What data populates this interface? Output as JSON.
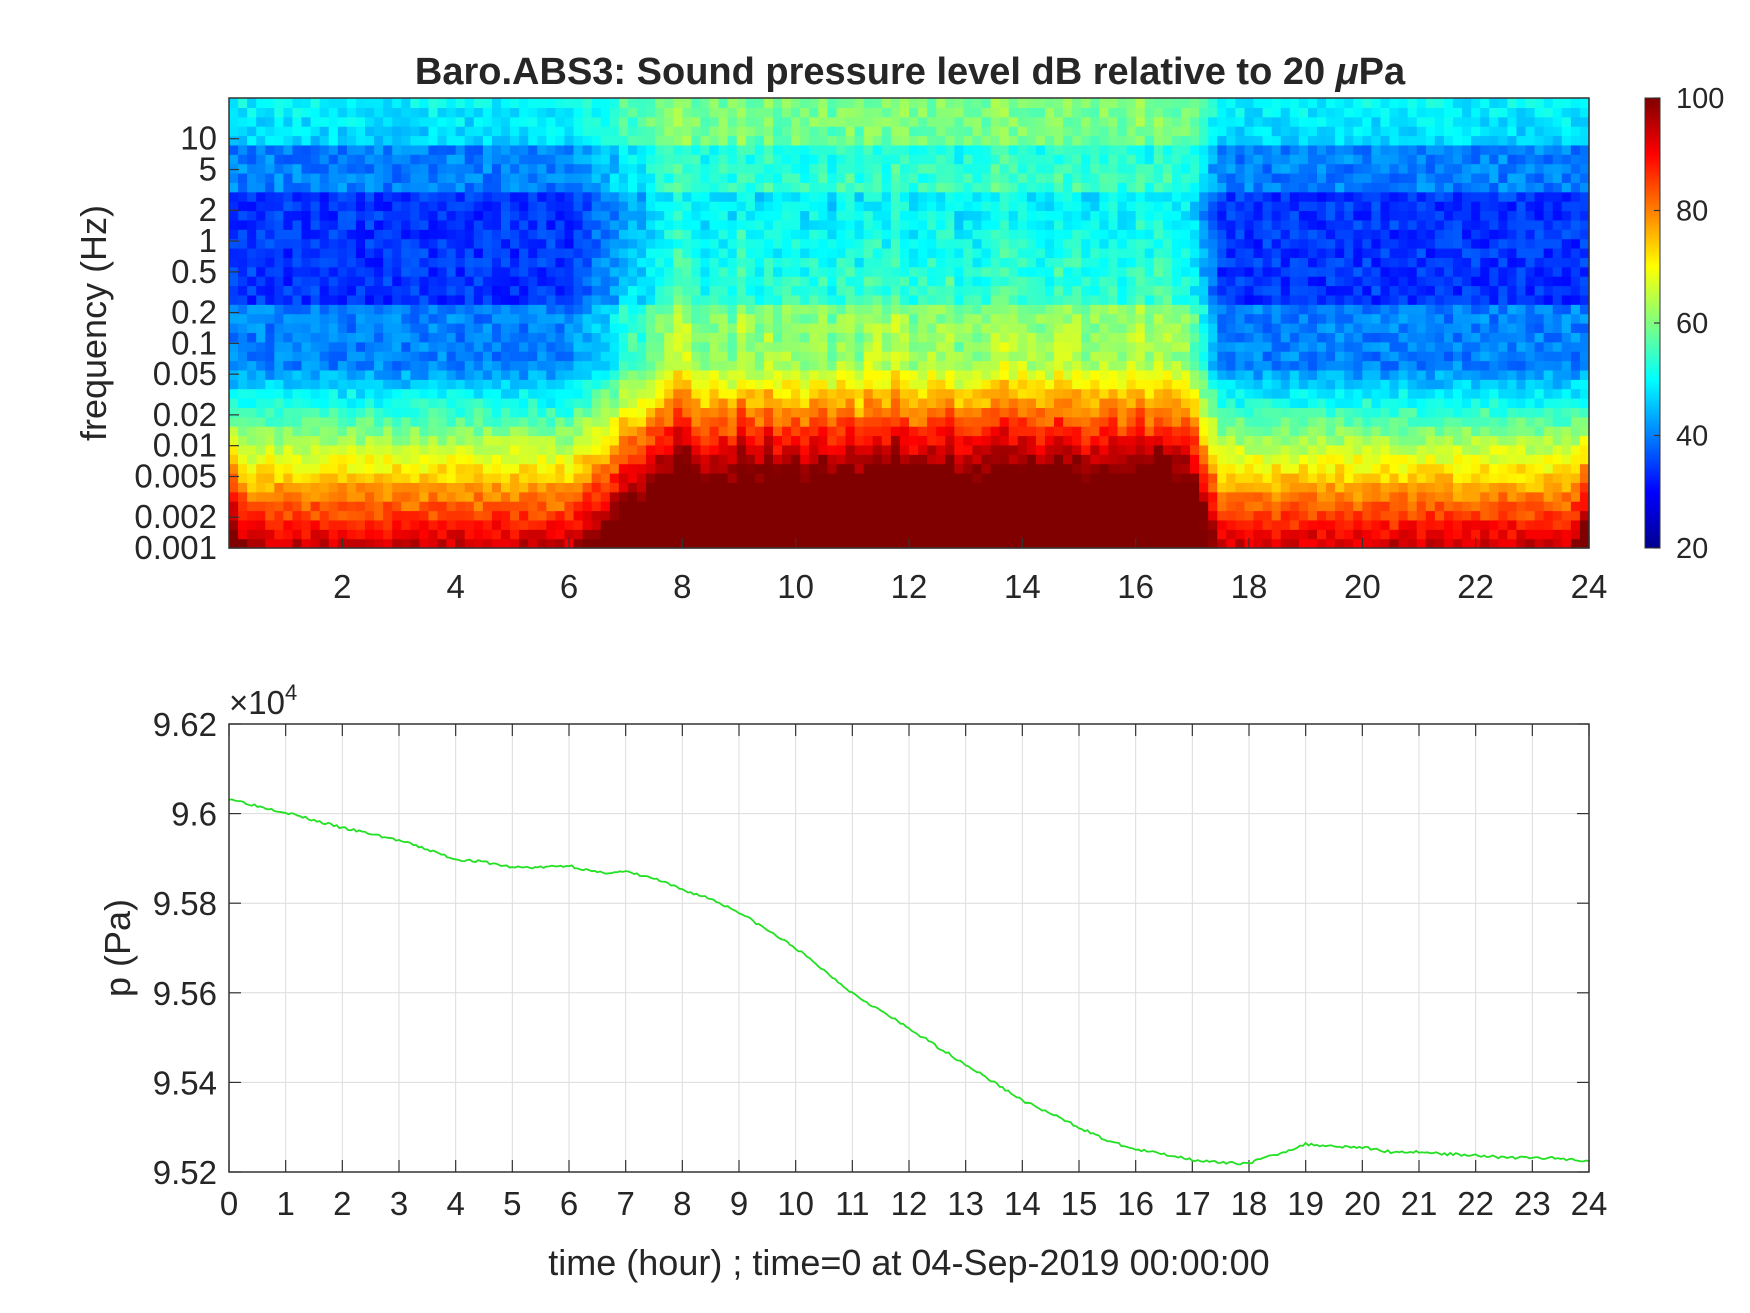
{
  "chart_data": [
    {
      "type": "heatmap",
      "title_prefix": "Baro.ABS3: Sound pressure level dB relative to 20 ",
      "title_mu": "μ",
      "title_suffix": "Pa",
      "ylabel": "frequency (Hz)",
      "xlabel": "",
      "x_range": [
        0,
        24
      ],
      "x_ticks": [
        "2",
        "4",
        "6",
        "8",
        "10",
        "12",
        "14",
        "16",
        "18",
        "20",
        "22",
        "24"
      ],
      "y_scale": "log",
      "y_range": [
        0.001,
        25
      ],
      "y_ticks": [
        "0.001",
        "0.002",
        "0.005",
        "0.01",
        "0.02",
        "0.05",
        "0.1",
        "0.2",
        "0.5",
        "1",
        "2",
        "5",
        "10"
      ],
      "colormap": "jet",
      "colorbar_range": [
        20,
        100
      ],
      "colorbar_ticks": [
        "20",
        "40",
        "60",
        "80",
        "100"
      ],
      "activity_band_hours": [
        6,
        17.5
      ]
    },
    {
      "type": "line",
      "title": "",
      "xlabel": "time (hour) ; time=0 at 04-Sep-2019 00:00:00",
      "ylabel": "p (Pa)",
      "exponent_prefix": "×10",
      "exponent_power": "4",
      "xlim": [
        0,
        24
      ],
      "ylim": [
        9.52,
        9.62
      ],
      "x_ticks": [
        "0",
        "1",
        "2",
        "3",
        "4",
        "5",
        "6",
        "7",
        "8",
        "9",
        "10",
        "11",
        "12",
        "13",
        "14",
        "15",
        "16",
        "17",
        "18",
        "19",
        "20",
        "21",
        "22",
        "23",
        "24"
      ],
      "y_ticks": [
        "9.52",
        "9.54",
        "9.56",
        "9.58",
        "9.6",
        "9.62"
      ],
      "grid": true,
      "line_color": "#22e022",
      "x": [
        0,
        0.5,
        1,
        1.5,
        2,
        2.5,
        3,
        3.5,
        4,
        4.5,
        5,
        5.5,
        6,
        6.5,
        7,
        7.5,
        8,
        8.5,
        9,
        9.5,
        10,
        10.5,
        11,
        11.5,
        12,
        12.5,
        13,
        13.5,
        14,
        14.5,
        15,
        15.5,
        16,
        16.5,
        17,
        17.5,
        18,
        18.5,
        19,
        19.5,
        20,
        20.5,
        21,
        21.5,
        22,
        22.5,
        23,
        23.5,
        24
      ],
      "y": [
        9.6034,
        9.6017,
        9.6003,
        9.5985,
        9.5968,
        9.5955,
        9.594,
        9.592,
        9.5898,
        9.5892,
        9.588,
        9.588,
        9.5884,
        9.5868,
        9.587,
        9.5855,
        9.583,
        9.581,
        9.578,
        9.574,
        9.57,
        9.565,
        9.56,
        9.556,
        9.552,
        9.548,
        9.544,
        9.54,
        9.536,
        9.533,
        9.53,
        9.527,
        9.525,
        9.524,
        9.5228,
        9.522,
        9.522,
        9.524,
        9.5262,
        9.5258,
        9.5255,
        9.5245,
        9.5245,
        9.524,
        9.5238,
        9.5232,
        9.5232,
        9.523,
        9.5225
      ]
    }
  ]
}
